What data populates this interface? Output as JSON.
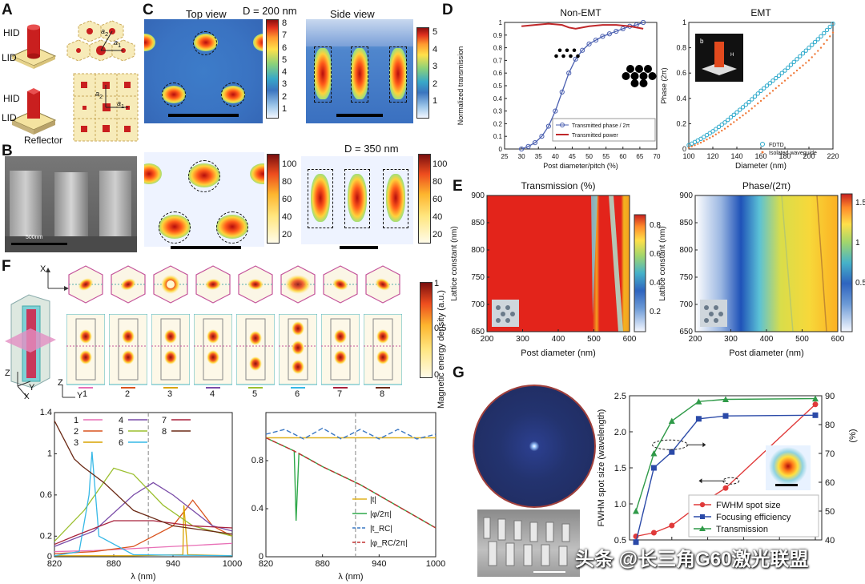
{
  "labels": {
    "A": "A",
    "B": "B",
    "C": "C",
    "D": "D",
    "E": "E",
    "F": "F",
    "G": "G"
  },
  "panelA": {
    "hid1": "HID",
    "lid1": "LID",
    "hid2": "HID",
    "lid2": "LID",
    "reflector": "Reflector",
    "a1": "a",
    "a2": "a",
    "a1s": "1",
    "a2s": "2",
    "b1": "a",
    "b2": "a",
    "b1s": "1",
    "b2s": "2"
  },
  "panelB": {
    "sem_scale": "500nm",
    "d_label": "D = 350 nm",
    "ticks": [
      "100",
      "80",
      "60",
      "40",
      "20"
    ]
  },
  "panelC": {
    "top_view": "Top view",
    "side_view": "Side view",
    "d_label": "D = 200 nm",
    "ticks1": [
      "8",
      "7",
      "6",
      "5",
      "4",
      "3",
      "2",
      "1"
    ],
    "ticks2": [
      "5",
      "4",
      "3",
      "2",
      "1"
    ]
  },
  "panelD": {
    "title_left": "Non-EMT",
    "title_right": "EMT",
    "ylabel_left": "Normalized transmission",
    "xlabel_left": "Post diameter/pitch (%)",
    "ylabel_right": "Phase (2π)",
    "xlabel_right": "Diameter (nm)",
    "legend_left": [
      "Transmitted phase / 2π",
      "Transmitted power"
    ],
    "legend_right": [
      "FDTD",
      "Isolated waveguide"
    ],
    "inset_b": "b",
    "inset_h": "H"
  },
  "panelE": {
    "title_left": "Transmission (%)",
    "title_right": "Phase/(2π)",
    "ylabel": "Lattice constant (nm)",
    "xlabel": "Post diameter (nm)",
    "cbar_left": [
      "0.8",
      "0.6",
      "0.4",
      "0.2"
    ],
    "cbar_right": [
      "1.5",
      "1",
      "0.5"
    ]
  },
  "panelF": {
    "axes3d": {
      "x": "X",
      "y": "Y",
      "z": "Z"
    },
    "cbar_label": "Magnetic energy density (a.u.)",
    "cbar_ticks": [
      "1",
      "0.5",
      "0"
    ],
    "mode_numbers": [
      "1",
      "2",
      "3",
      "4",
      "5",
      "6",
      "7",
      "8"
    ],
    "mode_colors": [
      "#e86fb6",
      "#d9531e",
      "#d9a400",
      "#7a4ca8",
      "#9bbf2e",
      "#36b8e6",
      "#a8213b",
      "#6b2a16"
    ],
    "xlabel": "λ (nm)"
  },
  "panelG": {
    "ylabel_left": "FWHM spot size (wavelength)",
    "ylabel_right": "(%)",
    "legend": [
      "FWHM spot size",
      "Focusing efficiency",
      "Transmission"
    ],
    "watermark": "头条 @长三角G60激光联盟"
  },
  "chart_data": [
    {
      "type": "line",
      "panel": "D-left",
      "title": "Non-EMT",
      "xlabel": "Post diameter/pitch (%)",
      "ylabel": "Normalized transmission",
      "xlim": [
        25,
        70
      ],
      "ylim": [
        0,
        1
      ],
      "xticks": [
        25,
        30,
        35,
        40,
        45,
        50,
        55,
        60,
        65,
        70
      ],
      "yticks": [
        0,
        0.1,
        0.2,
        0.3,
        0.4,
        0.5,
        0.6,
        0.7,
        0.8,
        0.9,
        1
      ],
      "series": [
        {
          "name": "Transmitted phase / 2π",
          "x": [
            30,
            32,
            34,
            36,
            38,
            40,
            42,
            44,
            46,
            48,
            50,
            52,
            54,
            56,
            58,
            60,
            62,
            64,
            66
          ],
          "values": [
            0,
            0.02,
            0.05,
            0.1,
            0.18,
            0.3,
            0.45,
            0.6,
            0.71,
            0.78,
            0.83,
            0.86,
            0.89,
            0.91,
            0.93,
            0.95,
            0.97,
            0.98,
            1.0
          ]
        },
        {
          "name": "Transmitted power",
          "x": [
            30,
            34,
            38,
            42,
            44,
            46,
            50,
            54,
            58,
            62,
            66
          ],
          "values": [
            0.97,
            0.98,
            0.99,
            0.98,
            0.96,
            0.95,
            0.97,
            0.98,
            0.98,
            0.97,
            0.95
          ]
        }
      ]
    },
    {
      "type": "scatter",
      "panel": "D-right",
      "title": "EMT",
      "xlabel": "Diameter (nm)",
      "ylabel": "Phase (2π)",
      "xlim": [
        100,
        220
      ],
      "ylim": [
        0,
        1
      ],
      "xticks": [
        100,
        120,
        140,
        160,
        180,
        200,
        220
      ],
      "yticks": [
        0,
        0.2,
        0.4,
        0.6,
        0.8,
        1
      ],
      "series": [
        {
          "name": "FDTD",
          "x": [
            100,
            110,
            120,
            130,
            140,
            150,
            160,
            170,
            180,
            190,
            200,
            210,
            220
          ],
          "values": [
            0.03,
            0.08,
            0.14,
            0.21,
            0.29,
            0.37,
            0.46,
            0.54,
            0.62,
            0.71,
            0.8,
            0.89,
            0.99
          ]
        },
        {
          "name": "Isolated waveguide",
          "x": [
            100,
            110,
            120,
            130,
            140,
            150,
            160,
            170,
            180,
            190,
            200,
            210,
            220
          ],
          "values": [
            0.01,
            0.05,
            0.1,
            0.16,
            0.23,
            0.3,
            0.38,
            0.46,
            0.54,
            0.62,
            0.7,
            0.8,
            0.92
          ]
        }
      ]
    },
    {
      "type": "line",
      "panel": "F-left",
      "xlabel": "λ (nm)",
      "xlim": [
        820,
        1000
      ],
      "ylim": [
        0,
        1.4
      ],
      "xticks": [
        820,
        880,
        940,
        1000
      ],
      "yticks": [
        0,
        0.2,
        0.6,
        1,
        1.4
      ],
      "series": [
        {
          "name": "1",
          "x": [
            820,
            860,
            900,
            940,
            980,
            1000
          ],
          "values": [
            0.05,
            0.06,
            0.08,
            0.1,
            0.12,
            0.13
          ]
        },
        {
          "name": "2",
          "x": [
            820,
            860,
            900,
            940,
            960,
            980,
            1000
          ],
          "values": [
            0.03,
            0.05,
            0.1,
            0.3,
            0.55,
            0.3,
            0.2
          ]
        },
        {
          "name": "3",
          "x": [
            820,
            900,
            950,
            951,
            955,
            1000
          ],
          "values": [
            0.01,
            0.01,
            0.02,
            0.5,
            0.02,
            0.01
          ]
        },
        {
          "name": "4",
          "x": [
            820,
            860,
            900,
            920,
            940,
            980,
            1000
          ],
          "values": [
            0.1,
            0.25,
            0.6,
            0.72,
            0.6,
            0.3,
            0.25
          ]
        },
        {
          "name": "5",
          "x": [
            820,
            850,
            880,
            900,
            930,
            960,
            1000
          ],
          "values": [
            0.15,
            0.45,
            0.86,
            0.8,
            0.5,
            0.3,
            0.2
          ]
        },
        {
          "name": "6",
          "x": [
            820,
            845,
            855,
            858,
            865,
            900,
            1000
          ],
          "values": [
            0.01,
            0.05,
            0.6,
            1.02,
            0.2,
            0.02,
            0.01
          ]
        },
        {
          "name": "7",
          "x": [
            820,
            840,
            880,
            920,
            960,
            1000
          ],
          "values": [
            0.12,
            0.2,
            0.35,
            0.35,
            0.3,
            0.28
          ]
        },
        {
          "name": "8",
          "x": [
            820,
            840,
            848,
            870,
            900,
            940,
            1000
          ],
          "values": [
            1.32,
            0.95,
            0.88,
            0.72,
            0.45,
            0.3,
            0.22
          ]
        }
      ]
    },
    {
      "type": "line",
      "panel": "F-right",
      "xlabel": "λ (nm)",
      "xlim": [
        820,
        1000
      ],
      "ylim": [
        0,
        1.2
      ],
      "xticks": [
        820,
        880,
        940,
        1000
      ],
      "yticks": [
        0,
        0.4,
        0.8
      ],
      "series": [
        {
          "name": "|t|",
          "x": [
            820,
            880,
            940,
            1000
          ],
          "values": [
            0.99,
            0.99,
            0.99,
            0.99
          ]
        },
        {
          "name": "|φ/2π|",
          "x": [
            820,
            850,
            852,
            855,
            880,
            920,
            960,
            1000
          ],
          "values": [
            0.99,
            0.88,
            0.3,
            0.86,
            0.75,
            0.6,
            0.42,
            0.24
          ]
        },
        {
          "name": "|t_RC|",
          "x": [
            820,
            840,
            860,
            880,
            900,
            920,
            940,
            960,
            980,
            1000
          ],
          "values": [
            1.02,
            1.06,
            0.98,
            1.07,
            0.98,
            1.06,
            0.98,
            1.06,
            0.98,
            1.02
          ]
        },
        {
          "name": "|φ_RC/2π|",
          "x": [
            820,
            850,
            880,
            920,
            960,
            1000
          ],
          "values": [
            0.99,
            0.88,
            0.75,
            0.6,
            0.42,
            0.24
          ]
        }
      ]
    },
    {
      "type": "line",
      "panel": "G",
      "ylabel": "FWHM spot size (wavelength)",
      "ylabel_right": "(%)",
      "ylim": [
        0.5,
        2.5
      ],
      "ylim_right": [
        40,
        90
      ],
      "yticks": [
        0.5,
        1.0,
        1.5,
        2.0,
        2.5
      ],
      "yticks_right": [
        40,
        50,
        60,
        70,
        80,
        90
      ],
      "xticks": [
        0,
        100,
        200,
        300,
        400,
        500
      ],
      "series": [
        {
          "name": "FWHM spot size",
          "x": [
            0,
            50,
            100,
            175,
            250,
            500
          ],
          "values": [
            0.55,
            0.6,
            0.7,
            0.98,
            1.22,
            2.38
          ]
        },
        {
          "name": "Focusing efficiency",
          "x": [
            0,
            50,
            100,
            175,
            250,
            500
          ],
          "values": [
            0.47,
            1.5,
            1.72,
            2.18,
            2.22,
            2.23
          ]
        },
        {
          "name": "Transmission",
          "x": [
            0,
            50,
            100,
            175,
            250,
            500
          ],
          "values": [
            0.9,
            1.7,
            2.15,
            2.42,
            2.45,
            2.46
          ]
        }
      ]
    }
  ]
}
